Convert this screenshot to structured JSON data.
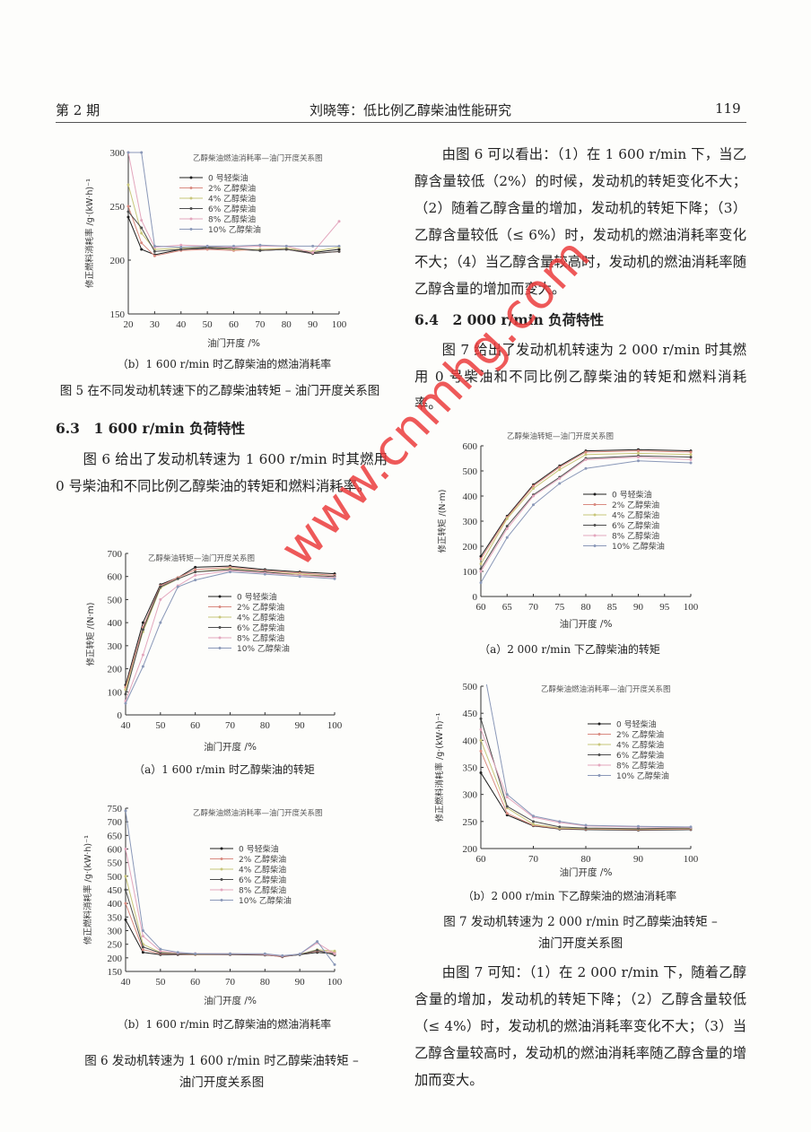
{
  "header": {
    "issue": "第 2 期",
    "title": "刘晓等：低比例乙醇柴油性能研究",
    "page": "119"
  },
  "left": {
    "fig5_sub_b": "（b）1 600 r/min 时乙醇柴油的燃油消耗率",
    "fig5_caption": "图 5 在不同发动机转速下的乙醇柴油转矩 – 油门开度关系图",
    "section_63": "6.3　1 600 r/min 负荷特性",
    "para_63": "图 6 给出了发动机转速为 1 600 r/min 时其燃用 0 号柴油和不同比例乙醇柴油的转矩和燃料消耗率。",
    "fig6_sub_a": "（a）1 600 r/min 时乙醇柴油的转矩",
    "fig6_sub_b": "（b）1 600 r/min 时乙醇柴油的燃油消耗率",
    "fig6_caption_1": "图 6 发动机转速为 1 600 r/min 时乙醇柴油转矩 –",
    "fig6_caption_2": "油门开度关系图"
  },
  "right": {
    "para_fig6": "由图 6 可以看出：（1）在 1 600 r/min 下，当乙醇含量较低（2%）的时候，发动机的转矩变化不大；（2）随着乙醇含量的增加，发动机的转矩下降；（3）乙醇含量较低（≤ 6%）时，发动机的燃油消耗率变化不大；（4）当乙醇含量较高时，发动机的燃油消耗率随乙醇含量的增加而变大。",
    "section_64": "6.4　2 000 r/min 负荷特性",
    "para_64": "图 7 给出了发动机机转速为 2 000 r/min 时其燃用 0 号柴油和不同比例乙醇柴油的转矩和燃料消耗率。",
    "fig7_sub_a": "（a）2 000 r/min 下乙醇柴油的转矩",
    "fig7_sub_b": "（b）2 000 r/min 下乙醇柴油的燃油消耗率",
    "fig7_caption_1": "图 7 发动机转速为 2 000 r/min 时乙醇柴油转矩 –",
    "fig7_caption_2": "油门开度关系图",
    "para_fig7": "由图 7 可知：（1）在 2 000 r/min 下，随着乙醇含量的增加，发动机的转矩下降；（2）乙醇含量较低（≤ 4%）时，发动机的燃油消耗率变化不大；（3）当乙醇含量较高时，发动机的燃油消耗率随乙醇含量的增加而变大。"
  },
  "watermark": "www.cnmhg.com",
  "series_colors": [
    "#1e1e1e",
    "#d98a80",
    "#c8c67a",
    "#4d4d4d",
    "#e3a6bd",
    "#8a98b8"
  ],
  "chart_data": [
    {
      "id": "fig5b",
      "type": "line",
      "title": "乙醇柴油燃油消耗率—油门开度关系图",
      "xlabel": "油门开度 /%",
      "ylabel": "修正燃料消耗率 /g·(kW·h)⁻¹",
      "xlim": [
        20,
        100
      ],
      "ylim": [
        150,
        300
      ],
      "xticks": [
        20,
        30,
        40,
        50,
        60,
        70,
        80,
        90,
        100
      ],
      "yticks": [
        150,
        200,
        250,
        300
      ],
      "x": [
        20,
        25,
        30,
        40,
        50,
        60,
        70,
        80,
        90,
        100
      ],
      "series": [
        {
          "name": "0 号轻柴油",
          "values": [
            240,
            210,
            205,
            210,
            211,
            210,
            209,
            210,
            207,
            210
          ]
        },
        {
          "name": "2% 乙醇柴油",
          "values": [
            250,
            216,
            204,
            209,
            210,
            209,
            210,
            210,
            206,
            208
          ]
        },
        {
          "name": "4% 乙醇柴油",
          "values": [
            270,
            225,
            210,
            211,
            212,
            210,
            210,
            211,
            208,
            212
          ]
        },
        {
          "name": "6% 乙醇柴油",
          "values": [
            245,
            230,
            208,
            210,
            212,
            211,
            209,
            210,
            206,
            208
          ]
        },
        {
          "name": "8% 乙醇柴油",
          "values": [
            300,
            237,
            212,
            214,
            213,
            212,
            213,
            213,
            207,
            236
          ]
        },
        {
          "name": "10% 乙醇柴油",
          "values": [
            300,
            300,
            213,
            212,
            213,
            213,
            214,
            213,
            213,
            213
          ]
        }
      ],
      "legend": "top-right"
    },
    {
      "id": "fig6a",
      "type": "line",
      "title": "乙醇柴油转矩—油门开度关系图",
      "xlabel": "油门开度 /%",
      "ylabel": "修正转矩 /(N·m)",
      "xlim": [
        40,
        100
      ],
      "ylim": [
        0,
        700
      ],
      "xticks": [
        40,
        50,
        60,
        70,
        80,
        90,
        100
      ],
      "yticks": [
        0,
        100,
        200,
        300,
        400,
        500,
        600,
        700
      ],
      "x": [
        40,
        45,
        50,
        55,
        60,
        70,
        80,
        90,
        100
      ],
      "series": [
        {
          "name": "0 号轻柴油",
          "values": [
            130,
            400,
            565,
            595,
            640,
            645,
            630,
            620,
            612
          ]
        },
        {
          "name": "2% 乙醇柴油",
          "values": [
            120,
            380,
            560,
            595,
            630,
            640,
            625,
            615,
            605
          ]
        },
        {
          "name": "4% 乙醇柴油",
          "values": [
            110,
            360,
            550,
            590,
            620,
            635,
            620,
            610,
            600
          ]
        },
        {
          "name": "6% 乙醇柴油",
          "values": [
            90,
            370,
            555,
            590,
            620,
            630,
            620,
            605,
            600
          ]
        },
        {
          "name": "8% 乙醇柴油",
          "values": [
            60,
            260,
            500,
            560,
            605,
            625,
            615,
            605,
            595
          ]
        },
        {
          "name": "10% 乙醇柴油",
          "values": [
            50,
            210,
            400,
            555,
            585,
            620,
            610,
            600,
            590
          ]
        }
      ],
      "legend": "right"
    },
    {
      "id": "fig6b",
      "type": "line",
      "title": "乙醇柴油燃油消耗率—油门开度关系图",
      "xlabel": "油门开度 /%",
      "ylabel": "修正燃料消耗率 /g·(kW·h)⁻¹",
      "xlim": [
        40,
        100
      ],
      "ylim": [
        150,
        750
      ],
      "xticks": [
        40,
        50,
        60,
        70,
        80,
        90,
        100
      ],
      "yticks": [
        150,
        200,
        250,
        300,
        350,
        400,
        450,
        500,
        550,
        600,
        650,
        700,
        750
      ],
      "x": [
        40,
        45,
        50,
        55,
        60,
        70,
        80,
        85,
        90,
        95,
        100
      ],
      "series": [
        {
          "name": "0 号轻柴油",
          "values": [
            340,
            220,
            212,
            212,
            212,
            212,
            210,
            205,
            212,
            220,
            215
          ]
        },
        {
          "name": "2% 乙醇柴油",
          "values": [
            400,
            230,
            215,
            213,
            212,
            213,
            212,
            203,
            213,
            225,
            220
          ]
        },
        {
          "name": "4% 乙醇柴油",
          "values": [
            500,
            250,
            220,
            215,
            213,
            215,
            213,
            206,
            213,
            230,
            225
          ]
        },
        {
          "name": "6% 乙醇柴油",
          "values": [
            450,
            240,
            218,
            214,
            214,
            214,
            213,
            205,
            212,
            228,
            210
          ]
        },
        {
          "name": "8% 乙醇柴油",
          "values": [
            600,
            280,
            225,
            218,
            216,
            215,
            213,
            207,
            214,
            255,
            215
          ]
        },
        {
          "name": "10% 乙醇柴油",
          "values": [
            740,
            300,
            232,
            220,
            215,
            215,
            215,
            208,
            214,
            260,
            175
          ]
        }
      ],
      "legend": "top-right"
    },
    {
      "id": "fig7a",
      "type": "line",
      "title": "乙醇柴油转矩—油门开度关系图",
      "xlabel": "油门开度 /%",
      "ylabel": "修正转矩 /(N·m)",
      "xlim": [
        60,
        100
      ],
      "ylim": [
        0,
        600
      ],
      "xticks": [
        60,
        65,
        70,
        75,
        80,
        85,
        90,
        95,
        100
      ],
      "yticks": [
        0,
        100,
        200,
        300,
        400,
        500,
        600
      ],
      "x": [
        60,
        65,
        70,
        75,
        80,
        90,
        100
      ],
      "series": [
        {
          "name": "0 号轻柴油",
          "values": [
            160,
            320,
            445,
            520,
            580,
            585,
            580
          ]
        },
        {
          "name": "2% 乙醇柴油",
          "values": [
            150,
            315,
            440,
            515,
            575,
            580,
            575
          ]
        },
        {
          "name": "4% 乙醇柴油",
          "values": [
            130,
            310,
            430,
            505,
            565,
            570,
            565
          ]
        },
        {
          "name": "6% 乙醇柴油",
          "values": [
            110,
            280,
            405,
            475,
            550,
            560,
            555
          ]
        },
        {
          "name": "8% 乙醇柴油",
          "values": [
            100,
            270,
            400,
            470,
            545,
            555,
            545
          ]
        },
        {
          "name": "10% 乙醇柴油",
          "values": [
            55,
            235,
            365,
            450,
            510,
            540,
            532
          ]
        }
      ],
      "legend": "right"
    },
    {
      "id": "fig7b",
      "type": "line",
      "title": "乙醇柴油燃油消耗率—油门开度关系图",
      "xlabel": "油门开度 /%",
      "ylabel": "修正燃料消耗率 /g·(kW·h)⁻¹",
      "xlim": [
        60,
        100
      ],
      "ylim": [
        200,
        500
      ],
      "xticks": [
        60,
        70,
        80,
        90,
        100
      ],
      "yticks": [
        200,
        250,
        300,
        350,
        400,
        450,
        500
      ],
      "x": [
        60,
        65,
        70,
        75,
        80,
        90,
        100
      ],
      "series": [
        {
          "name": "0 号轻柴油",
          "values": [
            340,
            262,
            242,
            236,
            235,
            234,
            235
          ]
        },
        {
          "name": "2% 乙醇柴油",
          "values": [
            380,
            265,
            243,
            237,
            236,
            235,
            236
          ]
        },
        {
          "name": "4% 乙醇柴油",
          "values": [
            400,
            275,
            245,
            238,
            237,
            236,
            237
          ]
        },
        {
          "name": "6% 乙醇柴油",
          "values": [
            440,
            278,
            250,
            240,
            238,
            237,
            238
          ]
        },
        {
          "name": "8% 乙醇柴油",
          "values": [
            420,
            295,
            258,
            248,
            242,
            240,
            239
          ]
        },
        {
          "name": "10% 乙醇柴油",
          "values": [
            560,
            300,
            260,
            250,
            243,
            241,
            240
          ]
        }
      ],
      "legend": "top-right"
    }
  ]
}
